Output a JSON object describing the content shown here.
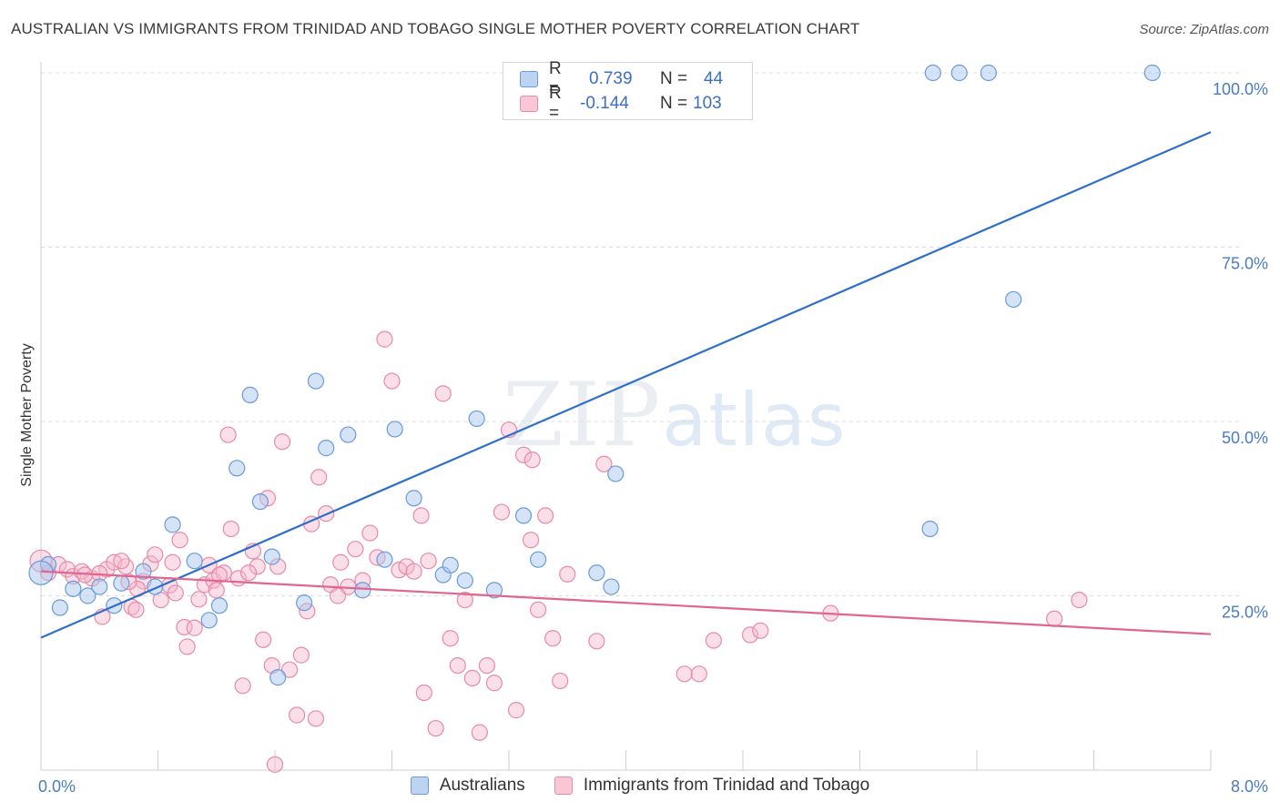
{
  "title": "AUSTRALIAN VS IMMIGRANTS FROM TRINIDAD AND TOBAGO SINGLE MOTHER POVERTY CORRELATION CHART",
  "source": "Source: ZipAtlas.com",
  "watermark": {
    "zip": "ZIP",
    "atlas": "atlas"
  },
  "colors": {
    "blue_fill": "#a9c8ee",
    "blue_stroke": "#6a9bd8",
    "blue_line": "#2f6fc9",
    "pink_fill": "#f5b8cb",
    "pink_stroke": "#e88aa8",
    "pink_line": "#e06690",
    "tick_label": "#4a7cc0"
  },
  "legend": {
    "rows": [
      {
        "r_label": "R =",
        "r_value": "0.739",
        "n_label": "N =",
        "n_value": "44"
      },
      {
        "r_label": "R =",
        "r_value": "-0.144",
        "n_label": "N =",
        "n_value": "103"
      }
    ]
  },
  "bottom_legend": [
    "Australians",
    "Immigrants from Trinidad and Tobago"
  ],
  "chart_data": {
    "type": "scatter",
    "title": "AUSTRALIAN VS IMMIGRANTS FROM TRINIDAD AND TOBAGO SINGLE MOTHER POVERTY CORRELATION CHART",
    "xlabel": "",
    "ylabel": "Single Mother Poverty",
    "xlim": [
      0,
      8
    ],
    "ylim": [
      0,
      102.5
    ],
    "x_tick_labels": [
      "0.0%",
      "8.0%"
    ],
    "y_ticks": [
      25,
      50,
      75,
      100
    ],
    "y_tick_labels": [
      "25.0%",
      "50.0%",
      "75.0%",
      "100.0%"
    ],
    "grid": "horizontal dashed",
    "legend_placement": "top-center",
    "series": [
      {
        "name": "Australians",
        "color": "#a9c8ee",
        "trend": {
          "x": [
            0,
            8
          ],
          "y": [
            19.0,
            91.5
          ]
        },
        "points": [
          [
            0.05,
            29.5
          ],
          [
            0.13,
            23.3
          ],
          [
            0.22,
            26.0
          ],
          [
            0.32,
            25.0
          ],
          [
            0.4,
            26.3
          ],
          [
            0.5,
            23.6
          ],
          [
            0.55,
            26.8
          ],
          [
            0.7,
            28.5
          ],
          [
            0.78,
            26.3
          ],
          [
            0.9,
            35.2
          ],
          [
            1.05,
            30.0
          ],
          [
            1.15,
            21.5
          ],
          [
            1.22,
            23.6
          ],
          [
            1.34,
            43.3
          ],
          [
            1.43,
            53.8
          ],
          [
            1.5,
            38.5
          ],
          [
            1.58,
            30.6
          ],
          [
            1.62,
            13.3
          ],
          [
            1.8,
            24.0
          ],
          [
            1.88,
            55.8
          ],
          [
            1.95,
            46.2
          ],
          [
            2.1,
            48.1
          ],
          [
            2.2,
            25.8
          ],
          [
            2.35,
            30.2
          ],
          [
            2.42,
            48.9
          ],
          [
            2.55,
            39.0
          ],
          [
            2.75,
            28.0
          ],
          [
            2.8,
            29.4
          ],
          [
            2.9,
            27.2
          ],
          [
            2.98,
            50.4
          ],
          [
            3.1,
            25.8
          ],
          [
            3.3,
            36.5
          ],
          [
            3.4,
            30.2
          ],
          [
            3.8,
            28.3
          ],
          [
            3.9,
            26.3
          ],
          [
            3.93,
            42.5
          ],
          [
            6.08,
            34.6
          ],
          [
            6.65,
            67.5
          ],
          [
            3.22,
            100
          ],
          [
            6.1,
            100
          ],
          [
            6.28,
            100
          ],
          [
            6.48,
            100
          ],
          [
            7.6,
            100
          ],
          [
            0.0,
            28.3
          ]
        ]
      },
      {
        "name": "Immigrants from Trinidad and Tobago",
        "color": "#f5b8cb",
        "trend": {
          "x": [
            0,
            8
          ],
          "y": [
            28.5,
            19.5
          ]
        },
        "points": [
          [
            0.05,
            28.3
          ],
          [
            0.12,
            29.5
          ],
          [
            0.18,
            28.8
          ],
          [
            0.22,
            27.8
          ],
          [
            0.28,
            28.5
          ],
          [
            0.35,
            27.5
          ],
          [
            0.42,
            22.0
          ],
          [
            0.45,
            28.8
          ],
          [
            0.5,
            29.8
          ],
          [
            0.58,
            29.2
          ],
          [
            0.62,
            23.4
          ],
          [
            0.65,
            23.0
          ],
          [
            0.7,
            27.1
          ],
          [
            0.75,
            29.6
          ],
          [
            0.78,
            30.9
          ],
          [
            0.82,
            24.4
          ],
          [
            0.88,
            26.5
          ],
          [
            0.9,
            29.8
          ],
          [
            0.92,
            25.4
          ],
          [
            0.95,
            33.0
          ],
          [
            0.98,
            20.5
          ],
          [
            1.0,
            17.7
          ],
          [
            1.05,
            20.4
          ],
          [
            1.08,
            24.5
          ],
          [
            1.12,
            26.6
          ],
          [
            1.15,
            29.4
          ],
          [
            1.18,
            27.2
          ],
          [
            1.2,
            25.8
          ],
          [
            1.25,
            28.3
          ],
          [
            1.28,
            48.1
          ],
          [
            1.3,
            34.6
          ],
          [
            1.35,
            27.5
          ],
          [
            1.38,
            12.1
          ],
          [
            1.45,
            31.4
          ],
          [
            1.48,
            29.2
          ],
          [
            1.52,
            18.7
          ],
          [
            1.55,
            39.0
          ],
          [
            1.58,
            15.0
          ],
          [
            1.62,
            29.2
          ],
          [
            1.65,
            47.1
          ],
          [
            1.7,
            14.4
          ],
          [
            1.75,
            7.9
          ],
          [
            1.78,
            16.5
          ],
          [
            1.82,
            22.8
          ],
          [
            1.85,
            35.3
          ],
          [
            1.88,
            7.4
          ],
          [
            1.9,
            42.0
          ],
          [
            1.95,
            36.8
          ],
          [
            1.98,
            26.6
          ],
          [
            2.05,
            29.8
          ],
          [
            2.1,
            26.3
          ],
          [
            2.15,
            31.7
          ],
          [
            2.2,
            27.2
          ],
          [
            2.25,
            34.0
          ],
          [
            2.3,
            30.5
          ],
          [
            2.35,
            61.8
          ],
          [
            2.4,
            55.8
          ],
          [
            2.45,
            28.7
          ],
          [
            2.5,
            29.2
          ],
          [
            2.55,
            28.5
          ],
          [
            2.6,
            36.5
          ],
          [
            2.62,
            11.1
          ],
          [
            2.65,
            30.0
          ],
          [
            2.7,
            6.0
          ],
          [
            2.75,
            54.0
          ],
          [
            2.8,
            18.9
          ],
          [
            2.85,
            15.0
          ],
          [
            2.9,
            24.4
          ],
          [
            2.95,
            13.2
          ],
          [
            3.0,
            5.4
          ],
          [
            3.05,
            15.0
          ],
          [
            3.1,
            12.5
          ],
          [
            3.15,
            37.0
          ],
          [
            3.2,
            48.8
          ],
          [
            3.25,
            8.6
          ],
          [
            3.3,
            45.2
          ],
          [
            3.35,
            33.0
          ],
          [
            3.4,
            23.0
          ],
          [
            3.45,
            36.5
          ],
          [
            3.5,
            18.9
          ],
          [
            3.55,
            12.8
          ],
          [
            3.6,
            28.1
          ],
          [
            3.8,
            18.5
          ],
          [
            3.85,
            43.9
          ],
          [
            4.4,
            13.8
          ],
          [
            4.5,
            13.8
          ],
          [
            4.6,
            18.6
          ],
          [
            4.85,
            19.4
          ],
          [
            4.92,
            20.0
          ],
          [
            5.4,
            22.5
          ],
          [
            6.93,
            21.7
          ],
          [
            7.1,
            24.4
          ],
          [
            1.6,
            0.8
          ],
          [
            0.4,
            28.2
          ],
          [
            0.66,
            26.0
          ],
          [
            1.22,
            28.0
          ],
          [
            3.36,
            44.5
          ],
          [
            0.55,
            30.0
          ],
          [
            1.42,
            28.3
          ],
          [
            2.03,
            25.0
          ],
          [
            0.3,
            28.0
          ],
          [
            0.6,
            27.0
          ],
          [
            0.0,
            30.0
          ]
        ]
      }
    ]
  }
}
